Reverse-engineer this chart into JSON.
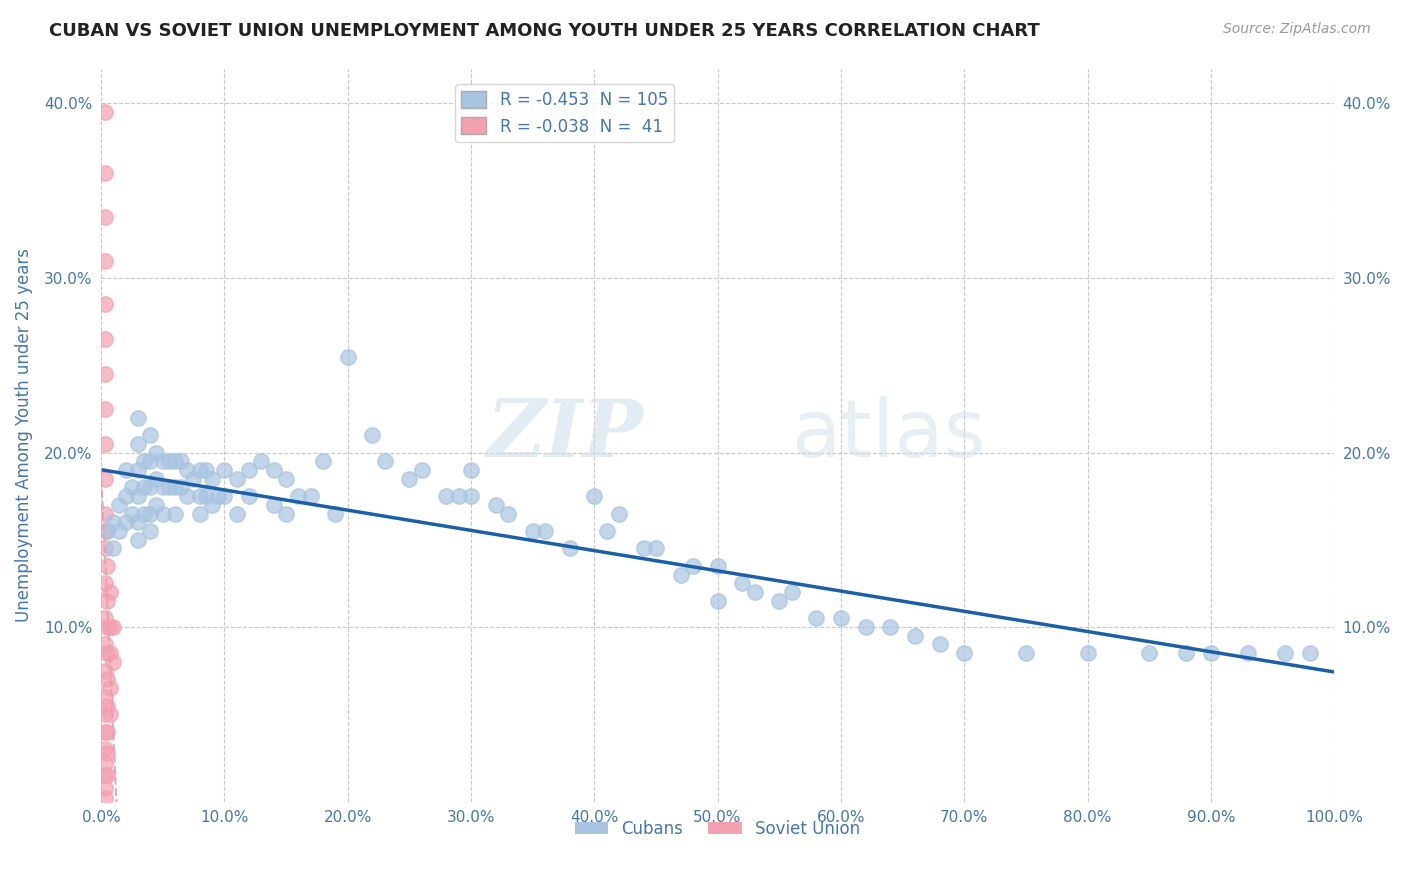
{
  "title": "CUBAN VS SOVIET UNION UNEMPLOYMENT AMONG YOUTH UNDER 25 YEARS CORRELATION CHART",
  "source": "Source: ZipAtlas.com",
  "ylabel": "Unemployment Among Youth under 25 years",
  "xlim": [
    0.0,
    1.0
  ],
  "ylim": [
    0.0,
    0.42
  ],
  "xtick_vals": [
    0.0,
    0.1,
    0.2,
    0.3,
    0.4,
    0.5,
    0.6,
    0.7,
    0.8,
    0.9,
    1.0
  ],
  "xtick_labels": [
    "0.0%",
    "10.0%",
    "20.0%",
    "30.0%",
    "40.0%",
    "50.0%",
    "60.0%",
    "70.0%",
    "80.0%",
    "90.0%",
    "100.0%"
  ],
  "ytick_vals": [
    0.1,
    0.2,
    0.3,
    0.4
  ],
  "ytick_labels": [
    "10.0%",
    "20.0%",
    "30.0%",
    "40.0%"
  ],
  "cubans_R": -0.453,
  "cubans_N": 105,
  "soviet_R": -0.038,
  "soviet_N": 41,
  "cubans_color": "#a8c4e0",
  "soviet_color": "#f4a0b0",
  "cubans_line_color": "#1a5fa8",
  "soviet_line_color": "#e0a0b0",
  "background_color": "#ffffff",
  "grid_color": "#c8c8c8",
  "title_color": "#222222",
  "axis_label_color": "#4477aa",
  "tick_label_color": "#4477aa",
  "watermark_zip": "ZIP",
  "watermark_atlas": "atlas",
  "cubans_x": [
    0.005,
    0.01,
    0.01,
    0.015,
    0.015,
    0.02,
    0.02,
    0.02,
    0.025,
    0.025,
    0.03,
    0.03,
    0.03,
    0.03,
    0.03,
    0.03,
    0.035,
    0.035,
    0.035,
    0.04,
    0.04,
    0.04,
    0.04,
    0.04,
    0.045,
    0.045,
    0.045,
    0.05,
    0.05,
    0.05,
    0.055,
    0.055,
    0.06,
    0.06,
    0.06,
    0.065,
    0.065,
    0.07,
    0.07,
    0.075,
    0.08,
    0.08,
    0.08,
    0.085,
    0.085,
    0.09,
    0.09,
    0.095,
    0.1,
    0.1,
    0.11,
    0.11,
    0.12,
    0.12,
    0.13,
    0.14,
    0.14,
    0.15,
    0.15,
    0.16,
    0.17,
    0.18,
    0.19,
    0.2,
    0.22,
    0.23,
    0.25,
    0.26,
    0.28,
    0.29,
    0.3,
    0.3,
    0.32,
    0.33,
    0.35,
    0.36,
    0.38,
    0.4,
    0.41,
    0.42,
    0.44,
    0.45,
    0.47,
    0.48,
    0.5,
    0.5,
    0.52,
    0.53,
    0.55,
    0.56,
    0.58,
    0.6,
    0.62,
    0.64,
    0.66,
    0.68,
    0.7,
    0.75,
    0.8,
    0.85,
    0.88,
    0.9,
    0.93,
    0.96,
    0.98
  ],
  "cubans_y": [
    0.155,
    0.16,
    0.145,
    0.17,
    0.155,
    0.19,
    0.175,
    0.16,
    0.18,
    0.165,
    0.22,
    0.205,
    0.19,
    0.175,
    0.16,
    0.15,
    0.195,
    0.18,
    0.165,
    0.21,
    0.195,
    0.18,
    0.165,
    0.155,
    0.2,
    0.185,
    0.17,
    0.195,
    0.18,
    0.165,
    0.195,
    0.18,
    0.195,
    0.18,
    0.165,
    0.195,
    0.18,
    0.19,
    0.175,
    0.185,
    0.19,
    0.175,
    0.165,
    0.19,
    0.175,
    0.185,
    0.17,
    0.175,
    0.19,
    0.175,
    0.185,
    0.165,
    0.19,
    0.175,
    0.195,
    0.19,
    0.17,
    0.185,
    0.165,
    0.175,
    0.175,
    0.195,
    0.165,
    0.255,
    0.21,
    0.195,
    0.185,
    0.19,
    0.175,
    0.175,
    0.19,
    0.175,
    0.17,
    0.165,
    0.155,
    0.155,
    0.145,
    0.175,
    0.155,
    0.165,
    0.145,
    0.145,
    0.13,
    0.135,
    0.135,
    0.115,
    0.125,
    0.12,
    0.115,
    0.12,
    0.105,
    0.105,
    0.1,
    0.1,
    0.095,
    0.09,
    0.085,
    0.085,
    0.085,
    0.085,
    0.085,
    0.085,
    0.085,
    0.085,
    0.085
  ],
  "soviet_x": [
    0.003,
    0.003,
    0.003,
    0.003,
    0.003,
    0.003,
    0.003,
    0.003,
    0.003,
    0.003,
    0.003,
    0.003,
    0.003,
    0.003,
    0.003,
    0.003,
    0.003,
    0.003,
    0.003,
    0.003,
    0.003,
    0.003,
    0.003,
    0.003,
    0.005,
    0.005,
    0.005,
    0.005,
    0.005,
    0.005,
    0.005,
    0.005,
    0.005,
    0.005,
    0.007,
    0.007,
    0.007,
    0.007,
    0.007,
    0.01,
    0.01
  ],
  "soviet_y": [
    0.395,
    0.36,
    0.335,
    0.31,
    0.285,
    0.265,
    0.245,
    0.225,
    0.205,
    0.185,
    0.165,
    0.145,
    0.125,
    0.105,
    0.09,
    0.075,
    0.06,
    0.05,
    0.04,
    0.03,
    0.022,
    0.015,
    0.008,
    0.002,
    0.155,
    0.135,
    0.115,
    0.1,
    0.085,
    0.07,
    0.055,
    0.04,
    0.028,
    0.015,
    0.12,
    0.1,
    0.085,
    0.065,
    0.05,
    0.1,
    0.08
  ]
}
